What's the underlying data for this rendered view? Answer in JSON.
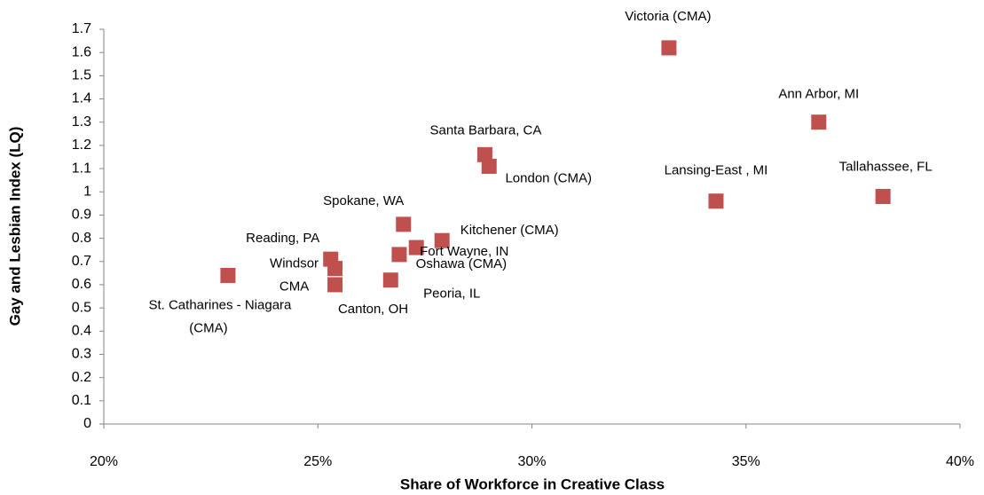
{
  "chart_data": {
    "type": "scatter",
    "x_label": "Share of Workforce in Creative Class",
    "y_label": "Gay and Lesbian Index (LQ)",
    "color": "#c0504d",
    "xlim": [
      20,
      40
    ],
    "xticks": [
      {
        "value": 20,
        "label": "20%"
      },
      {
        "value": 25,
        "label": "25%"
      },
      {
        "value": 30,
        "label": "30%"
      },
      {
        "value": 35,
        "label": "35%"
      },
      {
        "value": 40,
        "label": "40%"
      }
    ],
    "ylim": [
      0,
      1.7
    ],
    "yticks": [
      0,
      0.1,
      0.2,
      0.3,
      0.4,
      0.5,
      0.6,
      0.7,
      0.8,
      0.9,
      1,
      1.1,
      1.2,
      1.3,
      1.4,
      1.5,
      1.6,
      1.7
    ],
    "labels": [
      [
        "St. Catharines - Niagara",
        "(CMA)"
      ],
      [
        "Reading, PA"
      ],
      [
        "Windsor",
        "CMA"
      ],
      [
        "Canton, OH"
      ],
      [
        "Peoria, IL"
      ],
      [
        "Oshawa  (CMA)"
      ],
      [
        "Spokane, WA"
      ],
      [
        "Fort Wayne, IN"
      ],
      [
        "Kitchener  (CMA)"
      ],
      [
        "Santa Barbara, CA"
      ],
      [
        "London  (CMA)"
      ],
      [
        "Victoria  (CMA)"
      ],
      [
        "Lansing-East , MI"
      ],
      [
        "Ann Arbor, MI"
      ],
      [
        "Tallahassee, FL"
      ]
    ],
    "x": [
      22.9,
      25.3,
      25.4,
      25.4,
      26.7,
      26.9,
      27.0,
      27.3,
      27.9,
      28.9,
      29.0,
      33.2,
      34.3,
      36.7,
      38.2
    ],
    "values": [
      0.64,
      0.71,
      0.67,
      0.6,
      0.62,
      0.73,
      0.86,
      0.76,
      0.79,
      1.16,
      1.11,
      1.62,
      0.96,
      1.3,
      0.98
    ]
  }
}
